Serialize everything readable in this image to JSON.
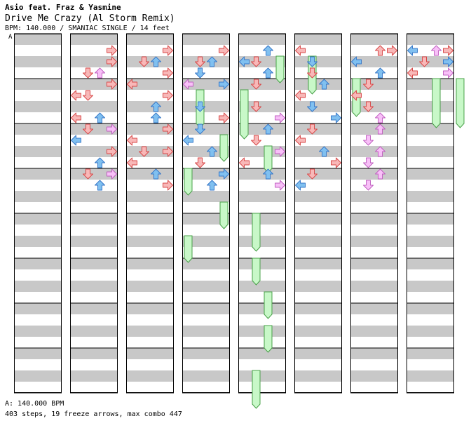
{
  "header": {
    "artist": "Asio feat. Fraz & Yasmine",
    "title": "Drive Me Crazy (Al Storm Remix)",
    "info": "BPM: 140.000 / SMANIAC SINGLE / 14 feet",
    "section_marker": "A"
  },
  "footer": {
    "bpm_line": "A: 140.000 BPM",
    "stats_line": "403 steps, 19 freeze arrows, max combo 447"
  },
  "colors": {
    "stripe_dark": "#c8c8c8",
    "stripe_light": "#ffffff",
    "red_fill": "#f8b8b8",
    "red_stroke": "#d84848",
    "blue_fill": "#80c0f0",
    "blue_stroke": "#3878c8",
    "pink_fill": "#f8c0f8",
    "pink_stroke": "#c060c0",
    "freeze_fill": "#c8f8c8",
    "freeze_stroke": "#48a048"
  },
  "chart_data": {
    "type": "step-chart",
    "columns": 8,
    "lanes": [
      "left",
      "down",
      "up",
      "right"
    ],
    "notes": [
      [],
      [
        [
          1,
          "right",
          "red"
        ],
        [
          2,
          "right",
          "red"
        ],
        [
          3,
          "down",
          "red"
        ],
        [
          3,
          "up",
          "pink"
        ],
        [
          4,
          "right",
          "red"
        ],
        [
          5,
          "left",
          "red"
        ],
        [
          5,
          "down",
          "red"
        ],
        [
          7,
          "left",
          "red"
        ],
        [
          7,
          "up",
          "blue"
        ],
        [
          8,
          "down",
          "red"
        ],
        [
          8,
          "right",
          "pink"
        ],
        [
          9,
          "left",
          "blue"
        ],
        [
          10,
          "right",
          "red"
        ],
        [
          11,
          "up",
          "blue"
        ],
        [
          12,
          "down",
          "red"
        ],
        [
          12,
          "right",
          "pink"
        ],
        [
          13,
          "up",
          "blue"
        ]
      ],
      [
        [
          1,
          "right",
          "red"
        ],
        [
          2,
          "down",
          "red"
        ],
        [
          2,
          "up",
          "blue"
        ],
        [
          3,
          "right",
          "red"
        ],
        [
          4,
          "left",
          "red"
        ],
        [
          5,
          "right",
          "red"
        ],
        [
          6,
          "up",
          "blue"
        ],
        [
          7,
          "up",
          "blue"
        ],
        [
          8,
          "right",
          "red"
        ],
        [
          9,
          "left",
          "red"
        ],
        [
          10,
          "down",
          "red"
        ],
        [
          10,
          "right",
          "red"
        ],
        [
          11,
          "left",
          "red"
        ],
        [
          12,
          "up",
          "blue"
        ],
        [
          13,
          "right",
          "red"
        ]
      ],
      [
        [
          1,
          "right",
          "red"
        ],
        [
          2,
          "down",
          "red"
        ],
        [
          2,
          "up",
          "blue"
        ],
        [
          3,
          "down",
          "blue"
        ],
        [
          4,
          "left",
          "pink"
        ],
        [
          4,
          "right",
          "blue"
        ],
        [
          6,
          "down",
          "blue"
        ],
        [
          7,
          "right",
          "red"
        ],
        [
          8,
          "down",
          "blue"
        ],
        [
          9,
          "left",
          "blue"
        ],
        [
          10,
          "up",
          "blue"
        ],
        [
          11,
          "down",
          "red"
        ],
        [
          12,
          "right",
          "blue"
        ],
        [
          13,
          "up",
          "blue"
        ]
      ],
      [
        [
          1,
          "up",
          "blue"
        ],
        [
          2,
          "left",
          "blue"
        ],
        [
          2,
          "down",
          "red"
        ],
        [
          3,
          "up",
          "blue"
        ],
        [
          4,
          "down",
          "red"
        ],
        [
          6,
          "down",
          "red"
        ],
        [
          7,
          "right",
          "pink"
        ],
        [
          8,
          "up",
          "blue"
        ],
        [
          9,
          "down",
          "red"
        ],
        [
          10,
          "right",
          "pink"
        ],
        [
          11,
          "left",
          "red"
        ],
        [
          12,
          "up",
          "blue"
        ],
        [
          13,
          "right",
          "pink"
        ]
      ],
      [
        [
          1,
          "left",
          "red"
        ],
        [
          2,
          "down",
          "blue"
        ],
        [
          3,
          "down",
          "red"
        ],
        [
          4,
          "up",
          "blue"
        ],
        [
          5,
          "left",
          "red"
        ],
        [
          6,
          "down",
          "blue"
        ],
        [
          7,
          "right",
          "blue"
        ],
        [
          8,
          "down",
          "red"
        ],
        [
          9,
          "left",
          "red"
        ],
        [
          10,
          "up",
          "blue"
        ],
        [
          11,
          "right",
          "red"
        ],
        [
          12,
          "down",
          "red"
        ],
        [
          13,
          "left",
          "blue"
        ]
      ],
      [
        [
          1,
          "right",
          "red"
        ],
        [
          1,
          "up",
          "red"
        ],
        [
          2,
          "left",
          "blue"
        ],
        [
          3,
          "up",
          "blue"
        ],
        [
          4,
          "down",
          "red"
        ],
        [
          5,
          "left",
          "red"
        ],
        [
          6,
          "down",
          "red"
        ],
        [
          7,
          "up",
          "pink"
        ],
        [
          8,
          "up",
          "pink"
        ],
        [
          9,
          "down",
          "pink"
        ],
        [
          10,
          "up",
          "pink"
        ],
        [
          11,
          "down",
          "pink"
        ],
        [
          12,
          "up",
          "pink"
        ],
        [
          13,
          "down",
          "pink"
        ]
      ],
      [
        [
          1,
          "left",
          "blue"
        ],
        [
          1,
          "up",
          "pink"
        ],
        [
          1,
          "right",
          "red"
        ],
        [
          2,
          "down",
          "red"
        ],
        [
          2,
          "right",
          "blue"
        ],
        [
          3,
          "left",
          "red"
        ],
        [
          3,
          "right",
          "pink"
        ]
      ]
    ],
    "freezes": [
      [],
      [],
      [],
      [
        [
          5,
          2,
          3
        ],
        [
          9,
          4,
          2
        ],
        [
          12,
          1,
          2
        ],
        [
          15,
          4,
          2
        ],
        [
          18,
          1,
          2
        ]
      ],
      [
        [
          2,
          4,
          2
        ],
        [
          5,
          1,
          4
        ],
        [
          10,
          3,
          2
        ],
        [
          16,
          2,
          3
        ],
        [
          20,
          2,
          2
        ],
        [
          23,
          3,
          2
        ],
        [
          26,
          3,
          2
        ],
        [
          30,
          2,
          3
        ]
      ],
      [
        [
          2,
          2,
          3
        ]
      ],
      [
        [
          4,
          1,
          3
        ]
      ],
      [
        [
          4,
          3,
          4
        ],
        [
          4,
          5,
          4
        ]
      ]
    ]
  }
}
